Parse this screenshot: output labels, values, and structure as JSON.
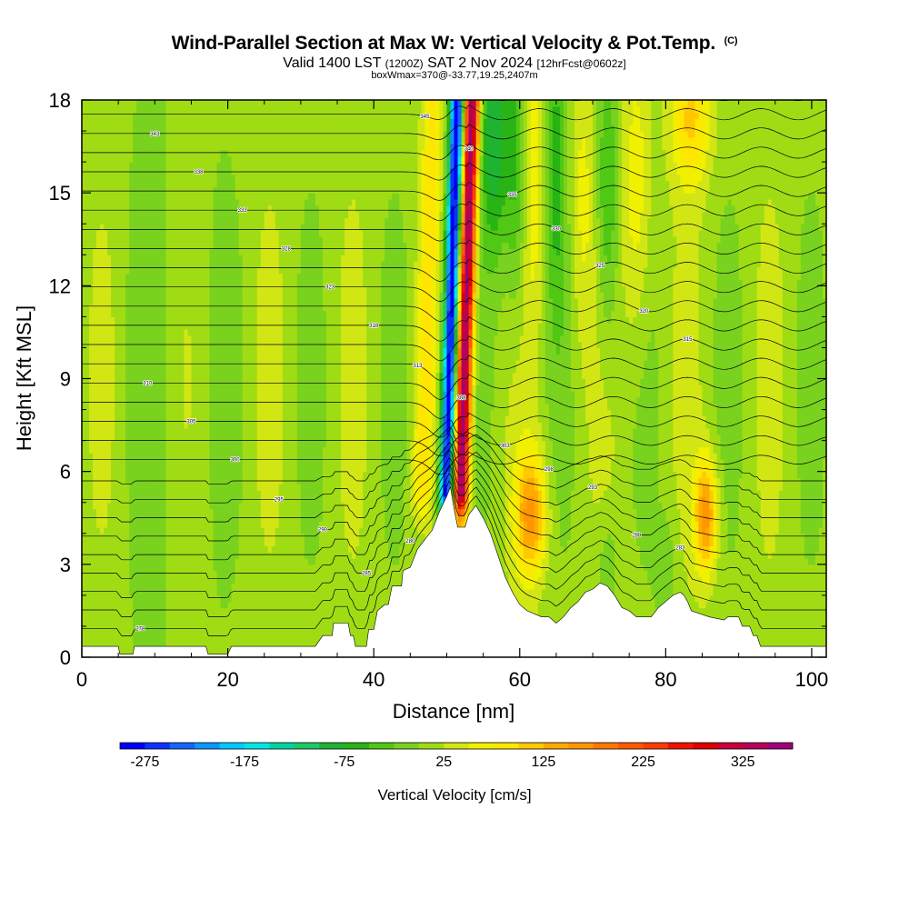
{
  "header": {
    "title": "Wind-Parallel Section at Max W: Vertical Velocity & Pot.Temp.",
    "copyright": "(C)",
    "valid_main": "Valid 1400 LST",
    "valid_utc": "(1200Z)",
    "valid_date": "SAT 2 Nov 2024",
    "forecast": "[12hrFcst@0602z]",
    "box_info": "boxWmax=370@-33.77,19.25,2407m"
  },
  "chart_data": {
    "type": "heatmap",
    "xlabel": "Distance [nm]",
    "ylabel": "Height [Kft MSL]",
    "xlim": [
      0,
      102
    ],
    "ylim": [
      0,
      18
    ],
    "x_ticks": [
      0,
      20,
      40,
      60,
      80,
      100
    ],
    "y_ticks": [
      0,
      3,
      6,
      9,
      12,
      15,
      18
    ],
    "colorbar": {
      "title": "Vertical Velocity [cm/s]",
      "min": -300,
      "max": 375,
      "step": 25,
      "labels": [
        -275,
        -175,
        -75,
        25,
        125,
        225,
        325
      ],
      "colors": [
        "#0000ff",
        "#0a32ff",
        "#1464ff",
        "#0c96ff",
        "#00c8ff",
        "#00e6e6",
        "#00d2a0",
        "#1ec864",
        "#1eb432",
        "#28b414",
        "#50c814",
        "#78d21e",
        "#a0dc14",
        "#d2e614",
        "#f0f000",
        "#ffe600",
        "#ffc800",
        "#ffaa00",
        "#ff9600",
        "#ff7800",
        "#ff5a00",
        "#ff3c00",
        "#f01400",
        "#dc0000",
        "#c8003c",
        "#b4005a",
        "#a00078"
      ]
    },
    "terrain_kft": [
      [
        0,
        0.35
      ],
      [
        5,
        0.35
      ],
      [
        5.2,
        0.1
      ],
      [
        7,
        0.1
      ],
      [
        7.2,
        0.35
      ],
      [
        17,
        0.35
      ],
      [
        17.3,
        0.1
      ],
      [
        20,
        0.1
      ],
      [
        20.5,
        0.35
      ],
      [
        32,
        0.35
      ],
      [
        33,
        0.7
      ],
      [
        34.3,
        0.7
      ],
      [
        34.5,
        1.1
      ],
      [
        36.5,
        1.1
      ],
      [
        36.8,
        0.7
      ],
      [
        37.2,
        0.7
      ],
      [
        37.5,
        0.35
      ],
      [
        39,
        0.35
      ],
      [
        39.3,
        0.9
      ],
      [
        40,
        0.9
      ],
      [
        40.5,
        1.5
      ],
      [
        41.5,
        1.7
      ],
      [
        42,
        1.7
      ],
      [
        42.5,
        2.3
      ],
      [
        43.8,
        2.3
      ],
      [
        44,
        2.8
      ],
      [
        45,
        2.9
      ],
      [
        46,
        3.5
      ],
      [
        47,
        3.8
      ],
      [
        48,
        4.1
      ],
      [
        49,
        4.7
      ],
      [
        50,
        5.2
      ],
      [
        50.5,
        5.5
      ],
      [
        51,
        4.8
      ],
      [
        51.5,
        4.2
      ],
      [
        52.5,
        4.2
      ],
      [
        53,
        4.6
      ],
      [
        54,
        4.9
      ],
      [
        55,
        4.5
      ],
      [
        56,
        4.0
      ],
      [
        57,
        3.3
      ],
      [
        58,
        2.6
      ],
      [
        59,
        2.1
      ],
      [
        60,
        1.7
      ],
      [
        61,
        1.5
      ],
      [
        63,
        1.3
      ],
      [
        64,
        1.3
      ],
      [
        65,
        1.1
      ],
      [
        66,
        1.3
      ],
      [
        67,
        1.6
      ],
      [
        68,
        1.8
      ],
      [
        69,
        2.1
      ],
      [
        70,
        2.2
      ],
      [
        71,
        2.4
      ],
      [
        72,
        2.3
      ],
      [
        73,
        2.0
      ],
      [
        73.5,
        1.8
      ],
      [
        74,
        1.6
      ],
      [
        75,
        1.5
      ],
      [
        76,
        1.3
      ],
      [
        77,
        1.3
      ],
      [
        78,
        1.3
      ],
      [
        79,
        1.6
      ],
      [
        80,
        1.8
      ],
      [
        81,
        2.0
      ],
      [
        82,
        2.1
      ],
      [
        82.5,
        2.0
      ],
      [
        83,
        1.8
      ],
      [
        83.5,
        1.5
      ],
      [
        86,
        1.3
      ],
      [
        88,
        1.2
      ],
      [
        88.5,
        1.3
      ],
      [
        90,
        1.3
      ],
      [
        90.5,
        1.0
      ],
      [
        91.5,
        1.0
      ],
      [
        92,
        0.7
      ],
      [
        92.5,
        0.7
      ],
      [
        93,
        0.35
      ],
      [
        102,
        0.35
      ]
    ],
    "contour_labels": [
      "278",
      "280",
      "283",
      "285",
      "288",
      "290",
      "293",
      "295",
      "298",
      "300",
      "303",
      "305",
      "308",
      "310",
      "313",
      "315",
      "318",
      "320",
      "323",
      "325",
      "328",
      "330",
      "333",
      "335",
      "338",
      "340",
      "343",
      "345",
      "348"
    ]
  }
}
